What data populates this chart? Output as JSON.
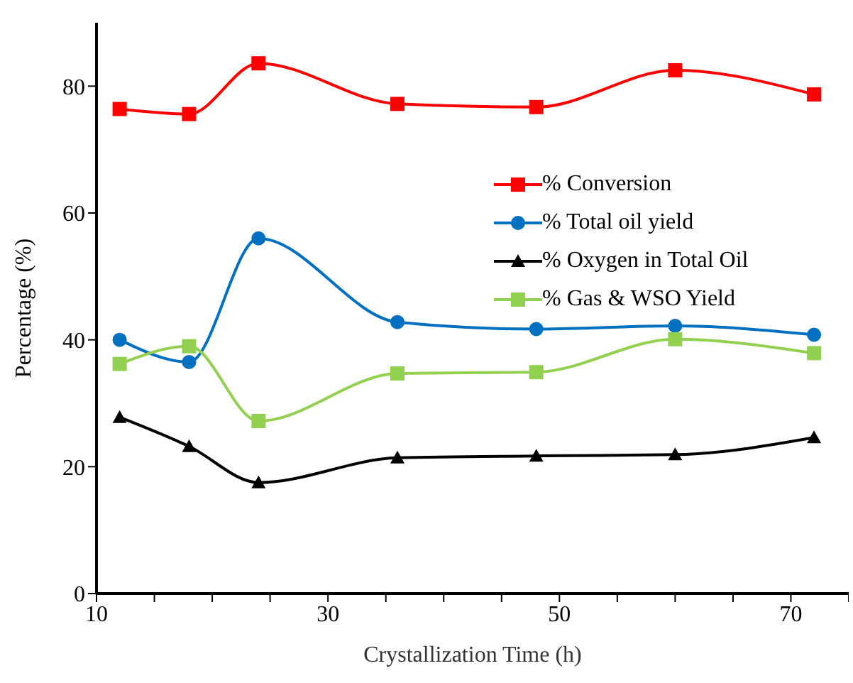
{
  "chart_data": {
    "type": "line",
    "xlabel": "Crystallization Time (h)",
    "ylabel": "Percentage (%)",
    "x": [
      12,
      18,
      24,
      36,
      48,
      60,
      72
    ],
    "series": [
      {
        "name": "% Conversion",
        "color": "#ff0000",
        "marker": "square",
        "values": [
          76.4,
          75.6,
          83.6,
          77.2,
          76.7,
          82.5,
          78.7
        ]
      },
      {
        "name": "% Total oil yield",
        "color": "#0070c0",
        "marker": "circle",
        "values": [
          40.0,
          36.5,
          56.0,
          42.8,
          41.7,
          42.2,
          40.8
        ]
      },
      {
        "name": "% Oxygen in Total Oil",
        "color": "#000000",
        "marker": "triangle",
        "values": [
          27.8,
          23.2,
          17.5,
          21.4,
          21.7,
          21.9,
          24.6
        ]
      },
      {
        "name": "% Gas & WSO Yield",
        "color": "#92d050",
        "marker": "square",
        "values": [
          36.2,
          39.0,
          27.2,
          34.7,
          34.9,
          40.1,
          37.9
        ]
      }
    ],
    "xlim": [
      10,
      75
    ],
    "xticks": [
      10,
      {
        "value": 15,
        "label": null
      },
      {
        "value": 20,
        "label": null
      },
      {
        "value": 25,
        "label": null
      },
      30,
      {
        "value": 35,
        "label": null
      },
      {
        "value": 40,
        "label": null
      },
      {
        "value": 45,
        "label": null
      },
      50,
      {
        "value": 55,
        "label": null
      },
      {
        "value": 60,
        "label": null
      },
      {
        "value": 65,
        "label": null
      },
      70,
      {
        "value": 75,
        "label": null
      }
    ],
    "ylim": [
      0,
      90
    ],
    "yticks": [
      0,
      20,
      40,
      60,
      80
    ],
    "grid": false,
    "legend": "right",
    "line_style": "solid"
  }
}
